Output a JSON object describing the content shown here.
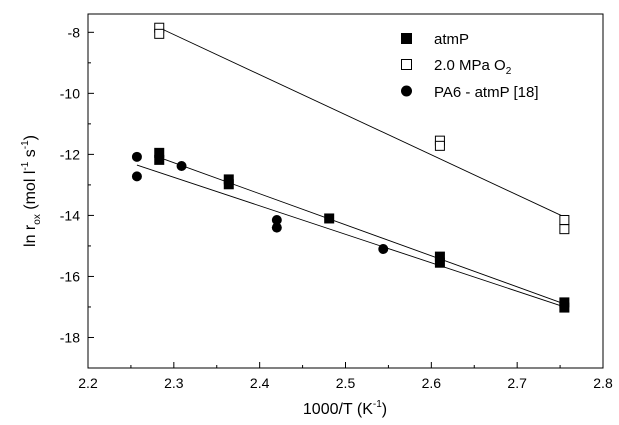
{
  "chart_data": {
    "type": "scatter",
    "title": "",
    "xlabel": "1000/T (K",
    "xlabel_sup": "-1",
    "xlabel_tail": ")",
    "ylabel": {
      "a": "ln r",
      "sub": "ox",
      "b": " (mol l",
      "sup1": "-1",
      "c": " s",
      "sup2": "-1",
      "d": ")"
    },
    "xlim": [
      2.2,
      2.8
    ],
    "ylim": [
      -19,
      -7.4
    ],
    "xticks": [
      "2.2",
      "2.3",
      "2.4",
      "2.5",
      "2.6",
      "2.7",
      "2.8"
    ],
    "yticks": [
      "-18",
      "-16",
      "-14",
      "-12",
      "-10",
      "-8"
    ],
    "xtick_values": [
      2.2,
      2.3,
      2.4,
      2.5,
      2.6,
      2.7,
      2.8
    ],
    "ytick_values": [
      -18,
      -16,
      -14,
      -12,
      -10,
      -8
    ],
    "grid": false,
    "legend_position": "top-right",
    "series": [
      {
        "name": "atmP",
        "marker": "filled-square",
        "color": "#000000",
        "points": [
          [
            2.283,
            -11.95
          ],
          [
            2.283,
            -12.18
          ],
          [
            2.364,
            -12.82
          ],
          [
            2.364,
            -12.98
          ],
          [
            2.481,
            -14.1
          ],
          [
            2.61,
            -15.35
          ],
          [
            2.61,
            -15.55
          ],
          [
            2.755,
            -16.85
          ],
          [
            2.755,
            -17.02
          ]
        ]
      },
      {
        "name": "2.0 MPa O",
        "name_sub": "2",
        "marker": "open-square",
        "color": "#000000",
        "points": [
          [
            2.283,
            -7.85
          ],
          [
            2.283,
            -8.05
          ],
          [
            2.61,
            -11.55
          ],
          [
            2.61,
            -11.72
          ],
          [
            2.755,
            -14.15
          ],
          [
            2.755,
            -14.45
          ]
        ]
      },
      {
        "name": "PA6 - atmP [18]",
        "marker": "filled-circle",
        "color": "#000000",
        "points": [
          [
            2.257,
            -12.08
          ],
          [
            2.257,
            -12.72
          ],
          [
            2.309,
            -12.38
          ],
          [
            2.42,
            -14.15
          ],
          [
            2.42,
            -14.4
          ],
          [
            2.544,
            -15.1
          ]
        ]
      }
    ],
    "fit_lines": [
      {
        "series": "atmP",
        "x": [
          2.283,
          2.755
        ],
        "y": [
          -12.1,
          -16.9
        ]
      },
      {
        "series": "2.0 MPa O2",
        "x": [
          2.283,
          2.755
        ],
        "y": [
          -7.85,
          -14.05
        ]
      },
      {
        "series": "PA6 - atmP [18]",
        "x": [
          2.257,
          2.755
        ],
        "y": [
          -12.35,
          -17.0
        ]
      }
    ]
  }
}
